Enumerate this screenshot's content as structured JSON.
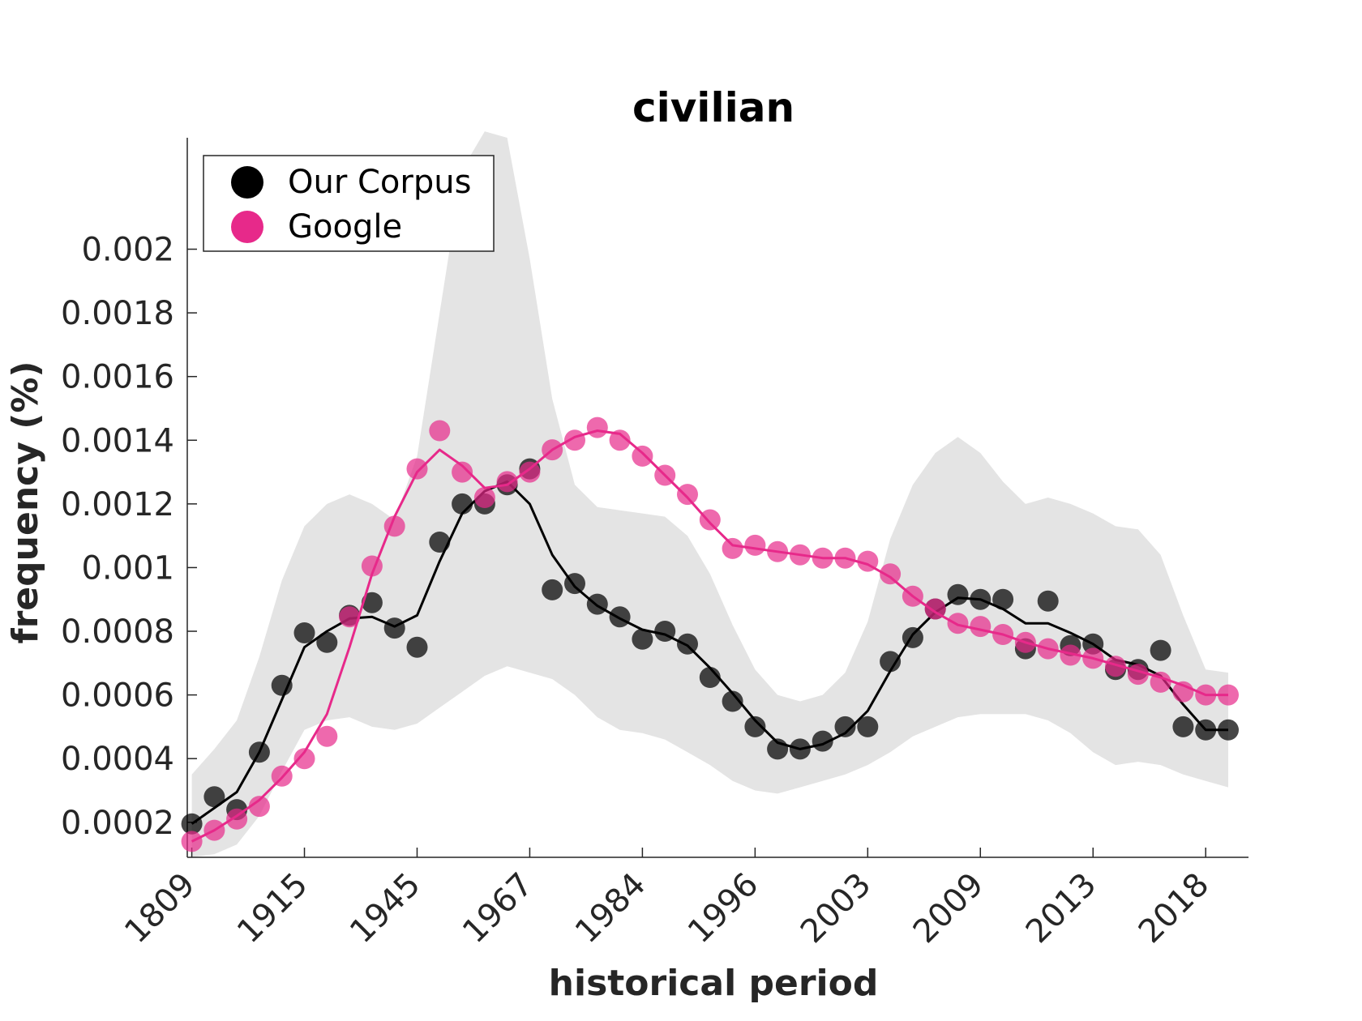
{
  "chart_data": {
    "type": "scatter",
    "title": "civilian",
    "xlabel": "historical period",
    "ylabel": "frequency (%)",
    "x_tick_labels": [
      "1809",
      "1915",
      "1945",
      "1967",
      "1984",
      "1996",
      "2003",
      "2009",
      "2013",
      "2018"
    ],
    "y_ticks": [
      0.0002,
      0.0004,
      0.0006,
      0.0008,
      0.001,
      0.0012,
      0.0014,
      0.0016,
      0.0018,
      0.002
    ],
    "y_tick_labels": [
      "0.0002",
      "0.0004",
      "0.0006",
      "0.0008",
      "0.001",
      "0.0012",
      "0.0014",
      "0.0016",
      "0.0018",
      "0.002"
    ],
    "ylim": [
      9e-05,
      0.00235
    ],
    "xlim": [
      0.8,
      47.9
    ],
    "legend_position": "top-left",
    "grid": false,
    "series": [
      {
        "name": "Our Corpus",
        "color": "#000000",
        "x": [
          1,
          2,
          3,
          4,
          5,
          6,
          7,
          8,
          9,
          10,
          11,
          12,
          13,
          14,
          15,
          16,
          17,
          18,
          19,
          20,
          21,
          22,
          23,
          24,
          25,
          26,
          27,
          28,
          29,
          30,
          31,
          32,
          33,
          34,
          35,
          36,
          37,
          38,
          39,
          40,
          41,
          42,
          43,
          44,
          45,
          46,
          47
        ],
        "values": [
          0.000195,
          0.00028,
          0.00024,
          0.00042,
          0.00063,
          0.000795,
          0.000765,
          0.00085,
          0.00089,
          0.00081,
          0.00075,
          0.00108,
          0.0012,
          0.0012,
          0.00126,
          0.00131,
          0.00093,
          0.00095,
          0.000885,
          0.000845,
          0.000775,
          0.0008,
          0.00076,
          0.000655,
          0.00058,
          0.0005,
          0.00043,
          0.00043,
          0.000455,
          0.0005,
          0.0005,
          0.000705,
          0.00078,
          0.00087,
          0.000915,
          0.0009,
          0.0009,
          0.000745,
          0.000895,
          0.000755,
          0.00076,
          0.00068,
          0.00068,
          0.00074,
          0.0005,
          0.00049,
          0.00049
        ],
        "smoothed": [
          0.000195,
          0.000245,
          0.000295,
          0.00042,
          0.000585,
          0.00075,
          0.0008,
          0.00084,
          0.000845,
          0.000815,
          0.00085,
          0.00102,
          0.00117,
          0.00124,
          0.00127,
          0.0012,
          0.00104,
          0.00094,
          0.00088,
          0.00084,
          0.000805,
          0.00079,
          0.000755,
          0.000685,
          0.000605,
          0.00052,
          0.00045,
          0.00043,
          0.000445,
          0.00048,
          0.00055,
          0.000675,
          0.00079,
          0.00086,
          0.000905,
          0.0009,
          0.00087,
          0.000825,
          0.000825,
          0.000795,
          0.00076,
          0.00071,
          0.000695,
          0.00066,
          0.00057,
          0.00049,
          0.00049
        ],
        "band_upper": [
          0.00035,
          0.00043,
          0.00052,
          0.00072,
          0.00096,
          0.00113,
          0.0012,
          0.00123,
          0.0012,
          0.00115,
          0.00135,
          0.0018,
          0.00225,
          0.00237,
          0.00235,
          0.00197,
          0.00153,
          0.00126,
          0.00119,
          0.00118,
          0.00117,
          0.00116,
          0.0011,
          0.00098,
          0.00082,
          0.00068,
          0.0006,
          0.00058,
          0.0006,
          0.00067,
          0.00083,
          0.00109,
          0.00126,
          0.00136,
          0.00141,
          0.00136,
          0.00127,
          0.0012,
          0.00122,
          0.0012,
          0.00117,
          0.00113,
          0.00112,
          0.00104,
          0.00085,
          0.00068,
          0.00067
        ],
        "band_lower": [
          9e-05,
          0.0001,
          0.00013,
          0.00022,
          0.00036,
          0.00049,
          0.00052,
          0.00053,
          0.0005,
          0.00049,
          0.00051,
          0.00056,
          0.00061,
          0.00066,
          0.00069,
          0.00067,
          0.00065,
          0.0006,
          0.00053,
          0.00049,
          0.00048,
          0.00046,
          0.00042,
          0.00038,
          0.00033,
          0.0003,
          0.00029,
          0.00031,
          0.00033,
          0.00035,
          0.00038,
          0.00042,
          0.00047,
          0.0005,
          0.00053,
          0.00054,
          0.00054,
          0.00054,
          0.00052,
          0.00048,
          0.00042,
          0.00038,
          0.00039,
          0.00038,
          0.00035,
          0.00033,
          0.00031
        ]
      },
      {
        "name": "Google",
        "color": "#e7298a",
        "x": [
          1,
          2,
          3,
          4,
          5,
          6,
          7,
          8,
          9,
          10,
          11,
          12,
          13,
          14,
          15,
          16,
          17,
          18,
          19,
          20,
          21,
          22,
          23,
          24,
          25,
          26,
          27,
          28,
          29,
          30,
          31,
          32,
          33,
          34,
          35,
          36,
          37,
          38,
          39,
          40,
          41,
          42,
          43,
          44,
          45,
          46,
          47
        ],
        "values": [
          0.00014,
          0.000175,
          0.00021,
          0.00025,
          0.000345,
          0.0004,
          0.00047,
          0.000845,
          0.001005,
          0.00113,
          0.00131,
          0.00143,
          0.0013,
          0.00122,
          0.00127,
          0.0013,
          0.00137,
          0.0014,
          0.00144,
          0.0014,
          0.00135,
          0.00129,
          0.00123,
          0.00115,
          0.00106,
          0.00107,
          0.00105,
          0.00104,
          0.00103,
          0.00103,
          0.00102,
          0.00098,
          0.00091,
          0.00087,
          0.000825,
          0.000815,
          0.00079,
          0.000765,
          0.000745,
          0.000725,
          0.000715,
          0.00069,
          0.000665,
          0.00064,
          0.00061,
          0.0006,
          0.0006
        ],
        "smoothed": [
          0.00014,
          0.000175,
          0.00022,
          0.00027,
          0.00034,
          0.00042,
          0.00054,
          0.00075,
          0.00098,
          0.00116,
          0.0013,
          0.00137,
          0.00132,
          0.00125,
          0.00126,
          0.00131,
          0.00137,
          0.00141,
          0.00143,
          0.00142,
          0.00136,
          0.00129,
          0.00122,
          0.00114,
          0.00107,
          0.00106,
          0.00105,
          0.00104,
          0.00103,
          0.00103,
          0.00101,
          0.00097,
          0.00091,
          0.00086,
          0.00082,
          0.000805,
          0.00079,
          0.000765,
          0.000745,
          0.00073,
          0.000715,
          0.000695,
          0.000675,
          0.000655,
          0.00063,
          0.0006,
          0.0006
        ]
      }
    ]
  }
}
